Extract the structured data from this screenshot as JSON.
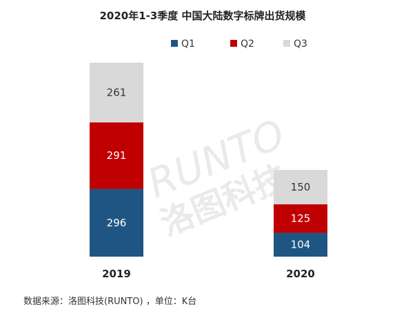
{
  "chart_data": {
    "type": "bar",
    "stacked": true,
    "title": "2020年1-3季度 中国大陆数字标牌出货规模",
    "categories": [
      "2019",
      "2020"
    ],
    "series": [
      {
        "name": "Q1",
        "values": [
          296,
          104
        ],
        "color": "#1f5582"
      },
      {
        "name": "Q2",
        "values": [
          291,
          125
        ],
        "color": "#c00000"
      },
      {
        "name": "Q3",
        "values": [
          261,
          150
        ],
        "color": "#d9d9d9"
      }
    ],
    "legend_position": "top-right",
    "grid": false
  },
  "source_note": "数据来源：洛图科技(RUNTO) ，单位：K台",
  "watermark": {
    "text": "RUNTO",
    "subtext": "洛图科技"
  }
}
